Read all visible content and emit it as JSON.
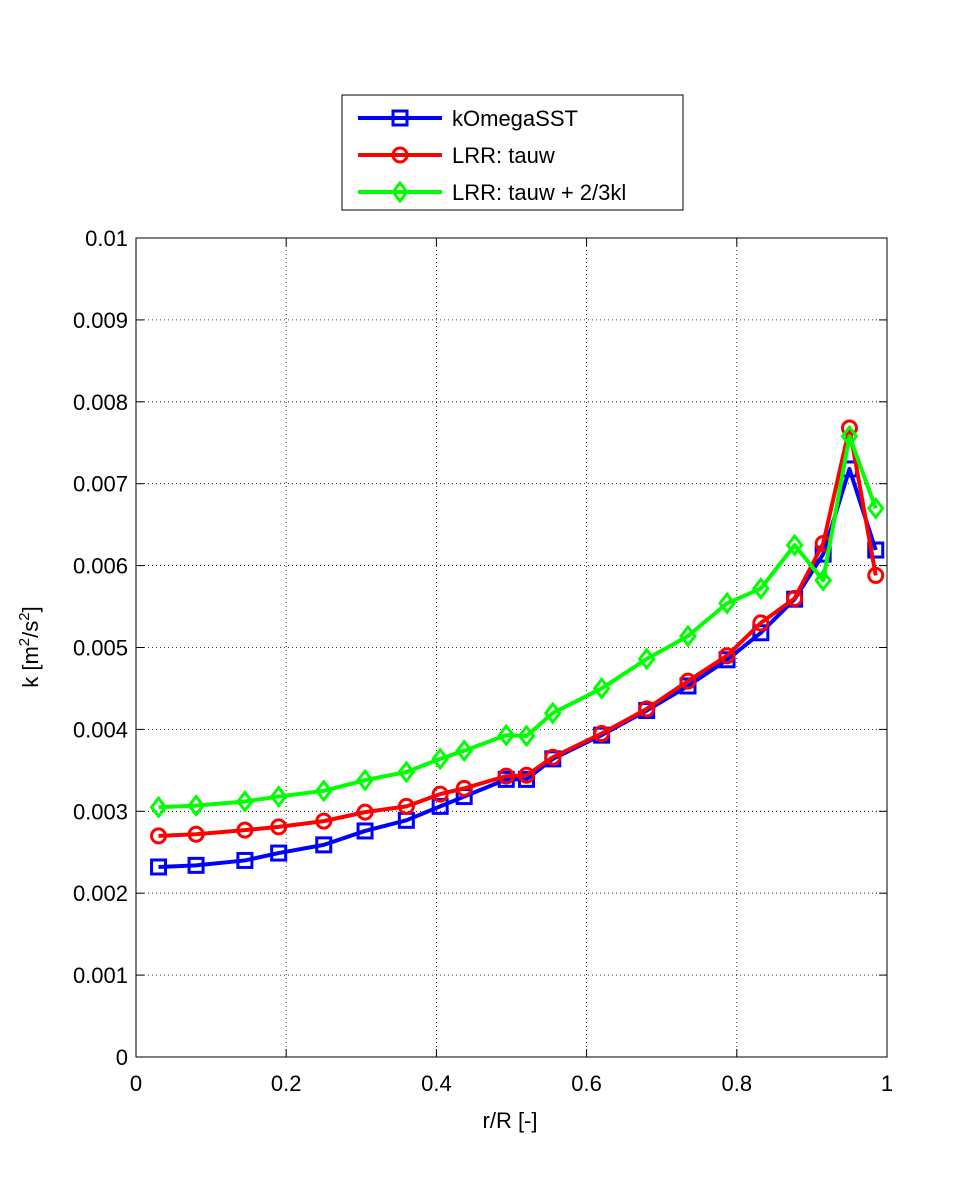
{
  "chart_data": {
    "type": "line",
    "title": "",
    "xlabel": "r/R [-]",
    "ylabel_parts": {
      "base": "k [m",
      "sup1": "2",
      "mid": "/s",
      "sup2": "2",
      "end": "]"
    },
    "xlim": [
      0,
      1
    ],
    "ylim": [
      0,
      0.01
    ],
    "xticks": [
      0,
      0.2,
      0.4,
      0.6,
      0.8,
      1
    ],
    "xtick_labels": [
      "0",
      "0.2",
      "0.4",
      "0.6",
      "0.8",
      "1"
    ],
    "yticks": [
      0,
      0.001,
      0.002,
      0.003,
      0.004,
      0.005,
      0.006,
      0.007,
      0.008,
      0.009,
      0.01
    ],
    "ytick_labels": [
      "0",
      "0.001",
      "0.002",
      "0.003",
      "0.004",
      "0.005",
      "0.006",
      "0.007",
      "0.008",
      "0.009",
      "0.01"
    ],
    "grid": true,
    "legend_position": "top-center",
    "x": [
      0.03,
      0.08,
      0.145,
      0.19,
      0.25,
      0.305,
      0.36,
      0.405,
      0.437,
      0.493,
      0.52,
      0.555,
      0.62,
      0.68,
      0.735,
      0.787,
      0.832,
      0.877,
      0.915,
      0.95,
      0.985
    ],
    "series": [
      {
        "name": "kOmegaSST",
        "color": "#0000ff",
        "marker": "square",
        "values": [
          0.00232,
          0.00234,
          0.0024,
          0.00249,
          0.00259,
          0.00276,
          0.00289,
          0.00306,
          0.00318,
          0.00339,
          0.00339,
          0.00364,
          0.00393,
          0.00423,
          0.00453,
          0.00485,
          0.00518,
          0.00559,
          0.00614,
          0.00718,
          0.00619
        ]
      },
      {
        "name": "LRR: tauw",
        "color": "#ff0000",
        "marker": "circle",
        "values": [
          0.0027,
          0.00272,
          0.00277,
          0.00281,
          0.00288,
          0.00299,
          0.00306,
          0.00321,
          0.00328,
          0.00343,
          0.00344,
          0.00366,
          0.00395,
          0.00425,
          0.00459,
          0.0049,
          0.0053,
          0.0056,
          0.00627,
          0.00768,
          0.00588
        ]
      },
      {
        "name": "LRR: tauw + 2/3kl",
        "color": "#00ff00",
        "marker": "diamond",
        "values": [
          0.00305,
          0.00307,
          0.00312,
          0.00318,
          0.00325,
          0.00338,
          0.00348,
          0.00364,
          0.00374,
          0.00393,
          0.00392,
          0.0042,
          0.0045,
          0.00486,
          0.00514,
          0.00554,
          0.00572,
          0.00625,
          0.00582,
          0.00758,
          0.0067
        ]
      }
    ]
  }
}
